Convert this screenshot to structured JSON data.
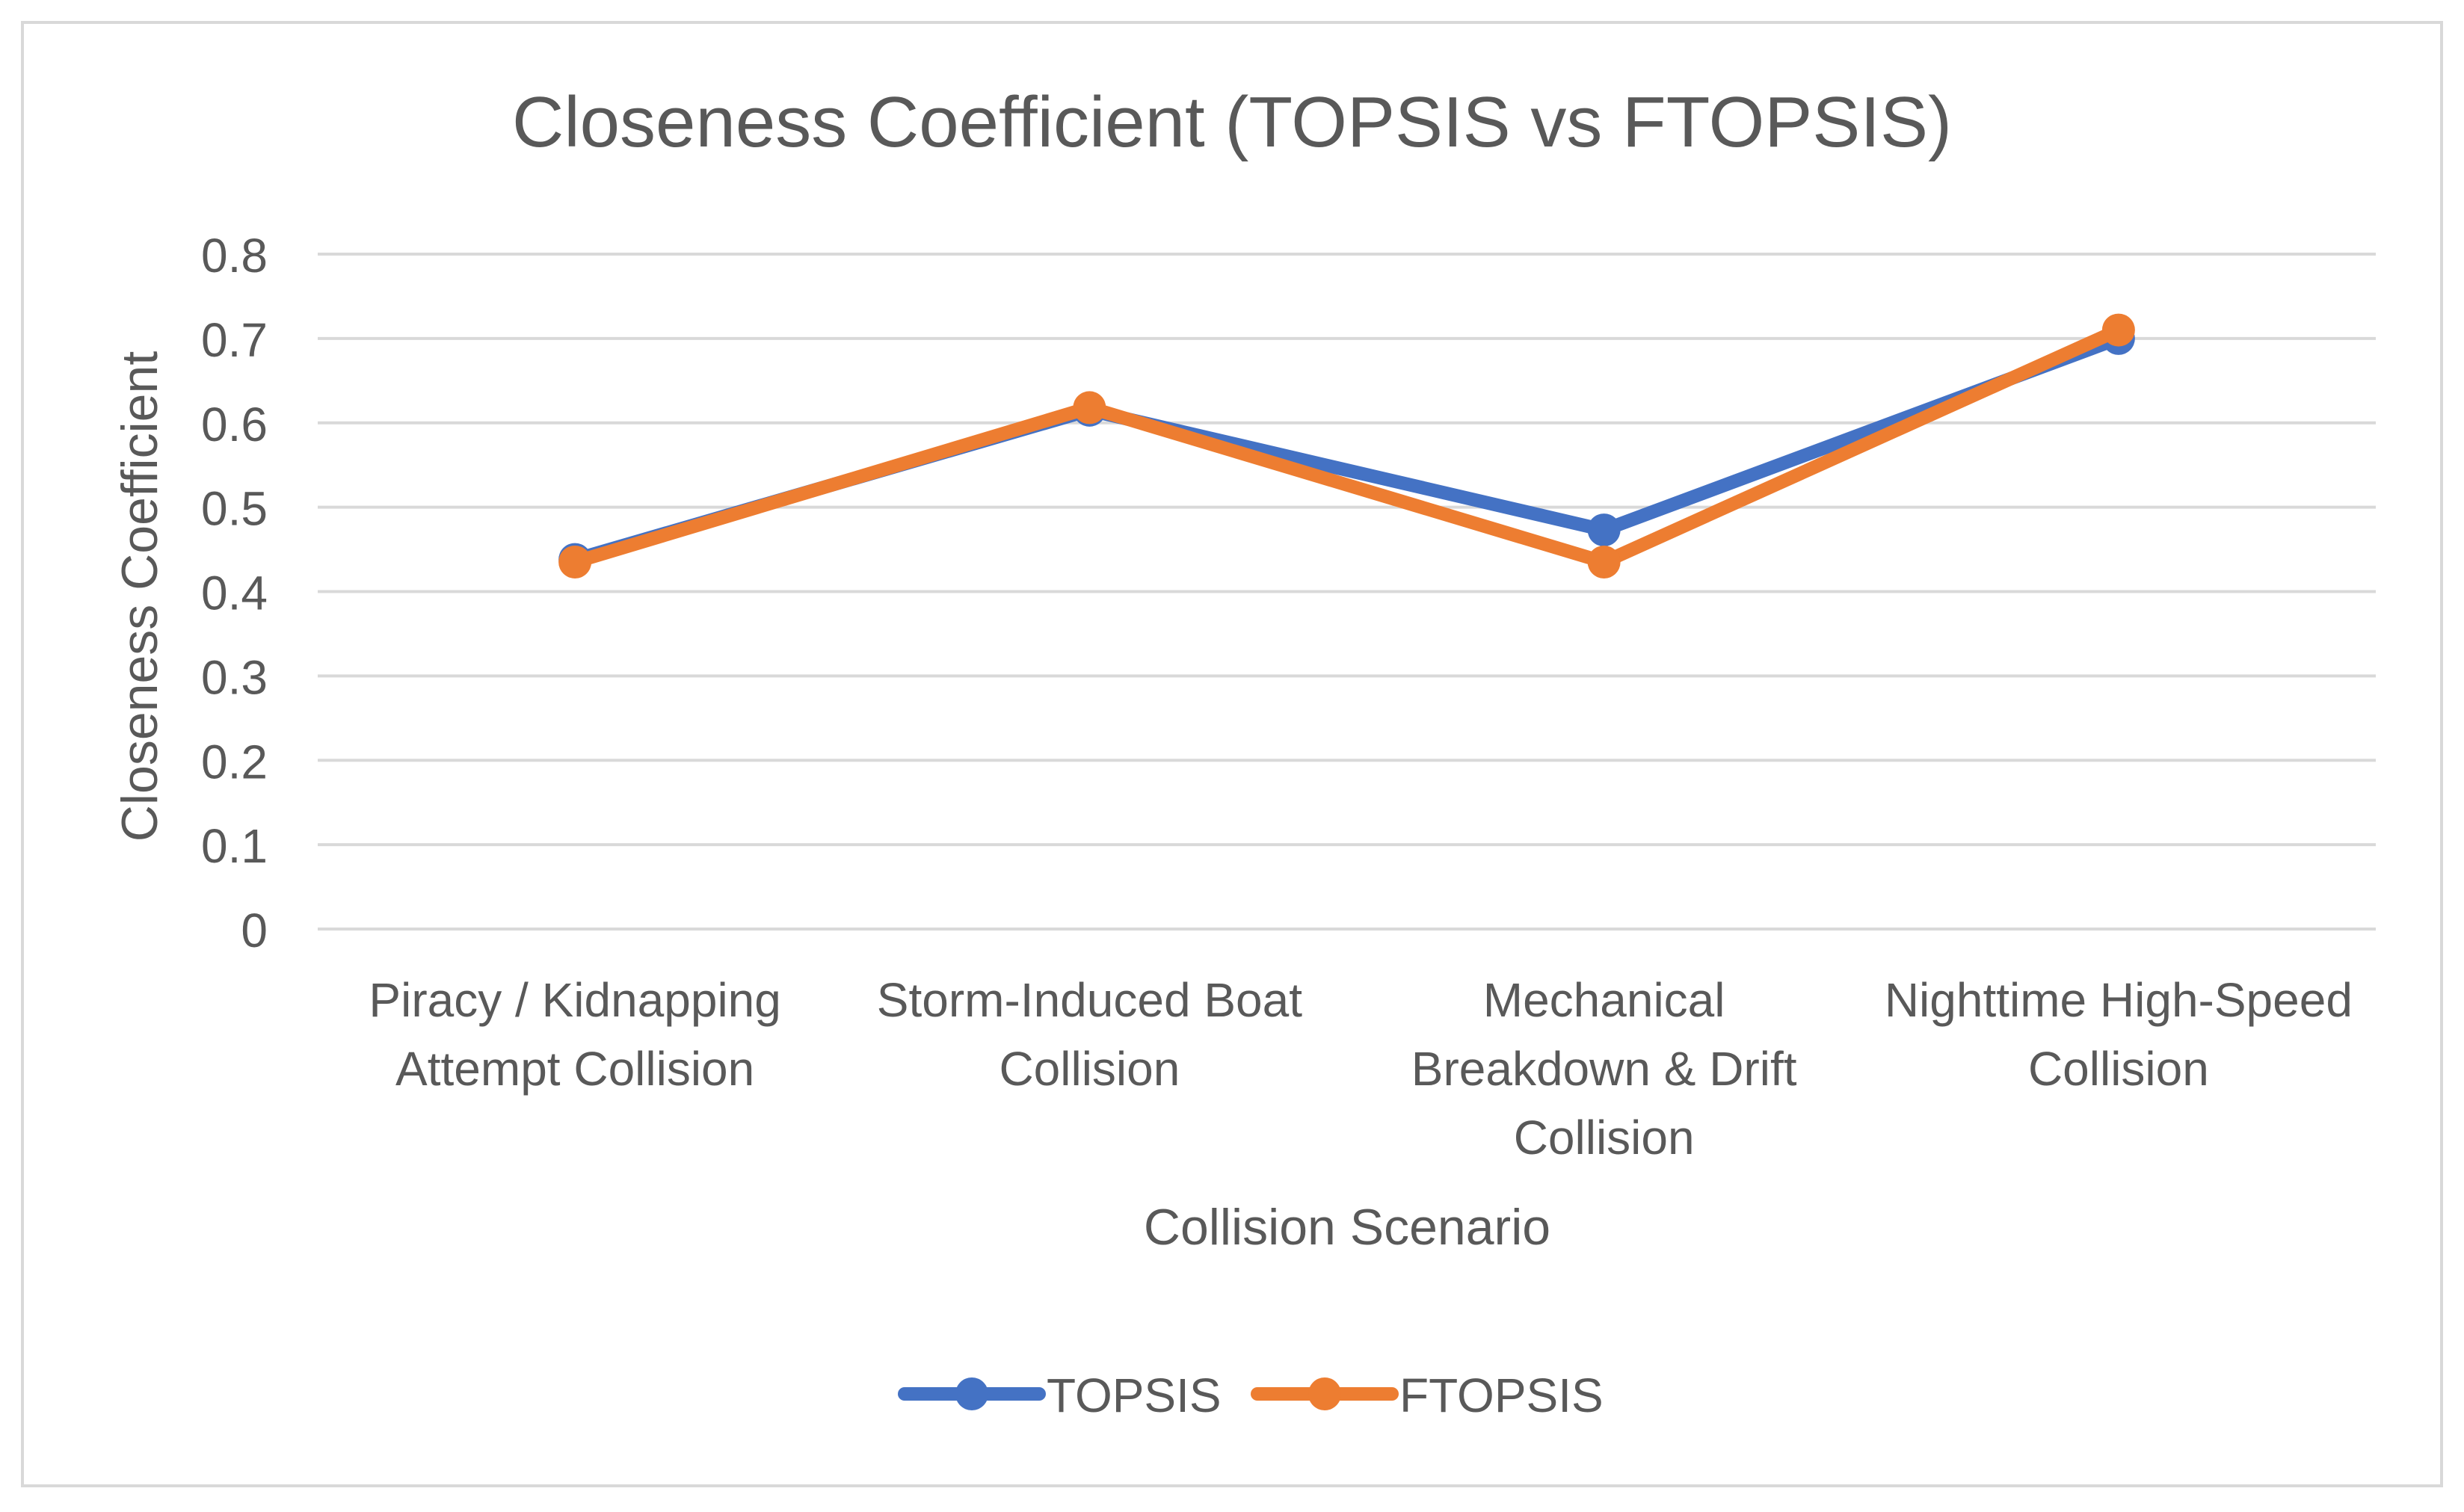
{
  "chart_data": {
    "type": "line",
    "title": "Closeness Coefficient (TOPSIS vs FTOPSIS)",
    "xlabel": "Collision Scenario",
    "ylabel": "Closeness Coefficient",
    "ylim": [
      0,
      0.8
    ],
    "yticks": [
      "0",
      "0.1",
      "0.2",
      "0.3",
      "0.4",
      "0.5",
      "0.6",
      "0.7",
      "0.8"
    ],
    "grid": true,
    "legend_position": "bottom",
    "categories": [
      [
        "Piracy / Kidnapping",
        "Attempt Collision"
      ],
      [
        "Storm-Induced Boat",
        "Collision"
      ],
      [
        "Mechanical",
        "Breakdown & Drift",
        "Collision"
      ],
      [
        "Nighttime High-Speed",
        "Collision"
      ]
    ],
    "series": [
      {
        "name": "TOPSIS",
        "color": "#4472C4",
        "values": [
          0.438,
          0.615,
          0.473,
          0.7
        ]
      },
      {
        "name": "FTOPSIS",
        "color": "#ED7D31",
        "values": [
          0.435,
          0.618,
          0.435,
          0.71
        ]
      }
    ]
  }
}
